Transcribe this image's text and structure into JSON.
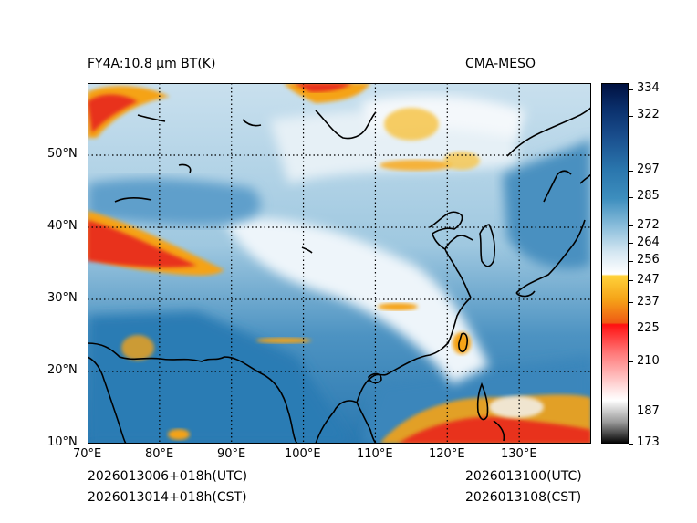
{
  "header": {
    "left_title": "FY4A:10.8 µm BT(K)",
    "right_title": "CMA-MESO"
  },
  "footer": {
    "init_utc": "2026013006+018h(UTC)",
    "init_cst": "2026013014+018h(CST)",
    "valid_utc": "2026013100(UTC)",
    "valid_cst": "2026013108(CST)"
  },
  "map": {
    "lon_labels": [
      "70°E",
      "80°E",
      "90°E",
      "100°E",
      "110°E",
      "120°E",
      "130°E"
    ],
    "lat_labels": [
      "50°N",
      "40°N",
      "30°N",
      "20°N",
      "10°N"
    ],
    "lon_range": [
      70,
      140
    ],
    "lat_range": [
      10,
      60
    ]
  },
  "colorbar": {
    "ticks": [
      "334",
      "322",
      "297",
      "285",
      "272",
      "264",
      "256",
      "247",
      "237",
      "225",
      "210",
      "187",
      "173"
    ],
    "tick_values": [
      334,
      322,
      297,
      285,
      272,
      264,
      256,
      247,
      237,
      225,
      210,
      187,
      173
    ],
    "range": [
      173,
      337
    ]
  },
  "colors": {
    "clear_sky": "#2f7fb6",
    "cloud_mid": "#b8d8ea",
    "cloud_high": "#f0f6fa",
    "cold_orange": "#f5a318",
    "very_cold_red": "#e8321e",
    "coast": "#000000"
  }
}
